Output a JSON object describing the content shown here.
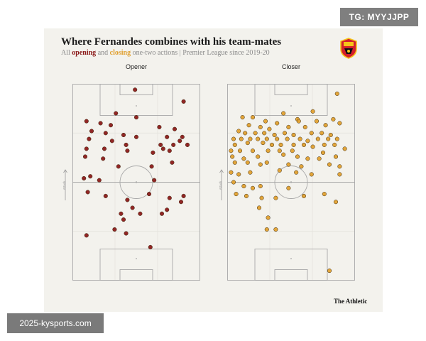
{
  "watermark_top": "TG: MYYJJPP",
  "watermark_bottom": "2025-kysports.com",
  "title": "Where Fernandes combines with his team-mates",
  "subtitle": {
    "prefix": "All ",
    "opening": "opening",
    "and": " and ",
    "closing": "closing",
    "suffix": " one-two actions | Premier League since 2019-20"
  },
  "brand": "The Athletic",
  "crest_icon": "manchester-united-crest",
  "colors": {
    "opener": "#8b1a1a",
    "closer": "#e0a030",
    "pitch_line": "#a8a8a8",
    "background": "#f3f2ed"
  },
  "attack_label": "Attack",
  "chart_data": [
    {
      "type": "scatter",
      "title": "Opener",
      "x_range": [
        0,
        100
      ],
      "y_range": [
        0,
        100
      ],
      "points": [
        [
          49,
          3
        ],
        [
          87,
          9
        ],
        [
          34,
          15
        ],
        [
          50,
          17
        ],
        [
          11,
          19
        ],
        [
          22,
          20
        ],
        [
          30,
          21
        ],
        [
          68,
          22
        ],
        [
          80,
          23
        ],
        [
          15,
          24
        ],
        [
          26,
          25
        ],
        [
          40,
          26
        ],
        [
          50,
          27
        ],
        [
          74,
          27
        ],
        [
          86,
          27
        ],
        [
          13,
          28
        ],
        [
          31,
          29
        ],
        [
          84,
          29
        ],
        [
          42,
          31
        ],
        [
          69,
          31
        ],
        [
          79,
          31
        ],
        [
          90,
          31
        ],
        [
          11,
          33
        ],
        [
          25,
          33
        ],
        [
          71,
          33
        ],
        [
          43,
          34
        ],
        [
          76,
          34
        ],
        [
          63,
          35
        ],
        [
          10,
          37
        ],
        [
          24,
          38
        ],
        [
          78,
          40
        ],
        [
          36,
          42
        ],
        [
          62,
          42
        ],
        [
          14,
          47
        ],
        [
          9,
          48
        ],
        [
          21,
          49
        ],
        [
          64,
          49
        ],
        [
          12,
          55
        ],
        [
          26,
          57
        ],
        [
          43,
          59
        ],
        [
          47,
          63
        ],
        [
          60,
          56
        ],
        [
          87,
          57
        ],
        [
          76,
          58
        ],
        [
          85,
          60
        ],
        [
          38,
          66
        ],
        [
          74,
          64
        ],
        [
          53,
          66
        ],
        [
          40,
          69
        ],
        [
          70,
          66
        ],
        [
          33,
          74
        ],
        [
          11,
          77
        ],
        [
          42,
          76
        ],
        [
          61,
          83
        ]
      ]
    },
    {
      "type": "scatter",
      "title": "Closer",
      "x_range": [
        0,
        100
      ],
      "y_range": [
        0,
        100
      ],
      "points": [
        [
          86,
          5
        ],
        [
          67,
          14
        ],
        [
          44,
          15
        ],
        [
          55,
          18
        ],
        [
          83,
          18
        ],
        [
          12,
          17
        ],
        [
          20,
          17
        ],
        [
          30,
          19
        ],
        [
          39,
          20
        ],
        [
          56,
          19
        ],
        [
          70,
          19
        ],
        [
          88,
          20
        ],
        [
          17,
          21
        ],
        [
          26,
          22
        ],
        [
          33,
          23
        ],
        [
          48,
          22
        ],
        [
          61,
          22
        ],
        [
          77,
          21
        ],
        [
          9,
          24
        ],
        [
          14,
          25
        ],
        [
          22,
          25
        ],
        [
          29,
          25
        ],
        [
          37,
          26
        ],
        [
          45,
          25
        ],
        [
          52,
          26
        ],
        [
          66,
          25
        ],
        [
          74,
          25
        ],
        [
          81,
          26
        ],
        [
          5,
          28
        ],
        [
          11,
          28
        ],
        [
          18,
          28
        ],
        [
          24,
          28
        ],
        [
          31,
          28
        ],
        [
          39,
          28
        ],
        [
          47,
          28
        ],
        [
          57,
          28
        ],
        [
          63,
          29
        ],
        [
          71,
          28
        ],
        [
          79,
          28
        ],
        [
          86,
          28
        ],
        [
          6,
          31
        ],
        [
          16,
          30
        ],
        [
          28,
          30
        ],
        [
          35,
          31
        ],
        [
          42,
          31
        ],
        [
          52,
          31
        ],
        [
          60,
          31
        ],
        [
          67,
          32
        ],
        [
          76,
          31
        ],
        [
          84,
          31
        ],
        [
          3,
          34
        ],
        [
          10,
          34
        ],
        [
          20,
          34
        ],
        [
          32,
          34
        ],
        [
          41,
          34
        ],
        [
          51,
          34
        ],
        [
          75,
          35
        ],
        [
          92,
          33
        ],
        [
          4,
          37
        ],
        [
          13,
          38
        ],
        [
          24,
          37
        ],
        [
          44,
          36
        ],
        [
          55,
          37
        ],
        [
          63,
          38
        ],
        [
          72,
          38
        ],
        [
          85,
          37
        ],
        [
          6,
          40
        ],
        [
          16,
          40
        ],
        [
          26,
          41
        ],
        [
          31,
          40
        ],
        [
          48,
          41
        ],
        [
          58,
          42
        ],
        [
          80,
          41
        ],
        [
          88,
          42
        ],
        [
          3,
          45
        ],
        [
          9,
          46
        ],
        [
          18,
          45
        ],
        [
          41,
          44
        ],
        [
          54,
          45
        ],
        [
          66,
          46
        ],
        [
          88,
          46
        ],
        [
          5,
          50
        ],
        [
          13,
          52
        ],
        [
          20,
          53
        ],
        [
          26,
          52
        ],
        [
          48,
          53
        ],
        [
          7,
          56
        ],
        [
          15,
          57
        ],
        [
          27,
          58
        ],
        [
          38,
          58
        ],
        [
          60,
          57
        ],
        [
          76,
          56
        ],
        [
          85,
          60
        ],
        [
          25,
          63
        ],
        [
          32,
          68
        ],
        [
          31,
          74
        ],
        [
          38,
          74
        ],
        [
          80,
          95
        ]
      ]
    }
  ]
}
